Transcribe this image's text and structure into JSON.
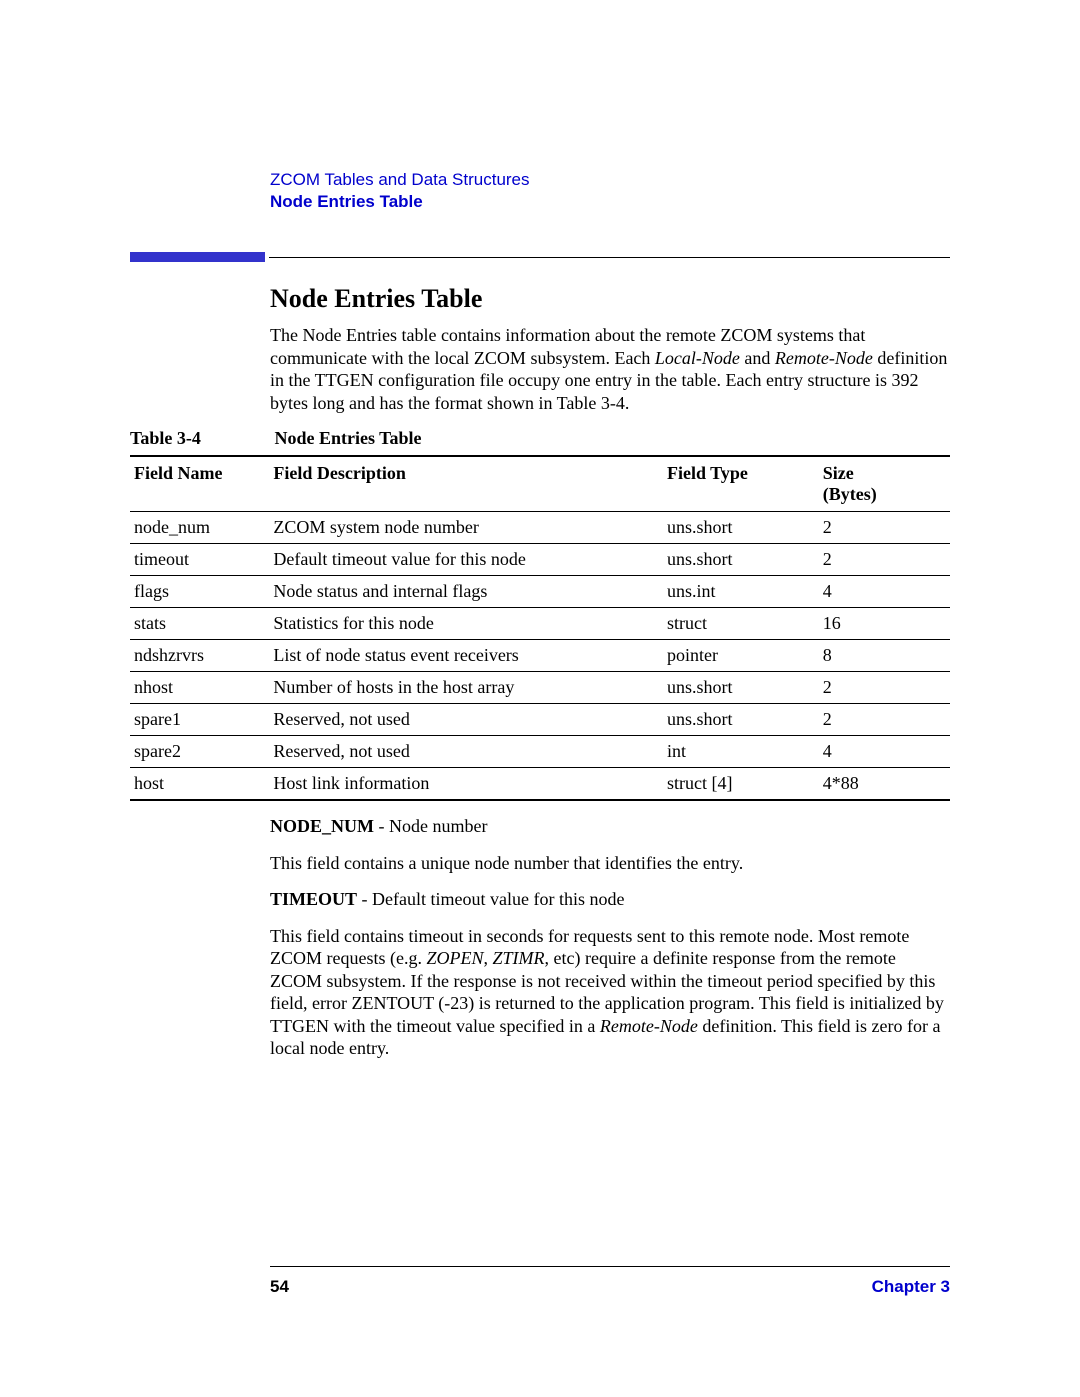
{
  "header": {
    "breadcrumb": "ZCOM Tables and Data Structures",
    "subtitle": "Node Entries Table"
  },
  "section": {
    "title": "Node Entries Table",
    "intro_html": "The Node Entries table contains information about the remote ZCOM systems that communicate with the local ZCOM subsystem. Each <i>Local-Node</i> and <i>Remote-Node</i> definition in the TTGEN configuration file occupy one entry in the table. Each entry structure is 392 bytes long and has the format shown in Table 3-4."
  },
  "table": {
    "caption_label": "Table 3-4",
    "caption_title": "Node Entries Table",
    "columns": [
      "Field Name",
      "Field Description",
      "Field Type",
      "Size (Bytes)"
    ],
    "rows": [
      [
        "node_num",
        "ZCOM system node number",
        "uns.short",
        "2"
      ],
      [
        "timeout",
        "Default timeout value for this node",
        "uns.short",
        "2"
      ],
      [
        "flags",
        "Node status and internal flags",
        "uns.int",
        "4"
      ],
      [
        "stats",
        "Statistics for this node",
        "struct",
        "16"
      ],
      [
        "ndshzrvrs",
        "List of node status event receivers",
        "pointer",
        "8"
      ],
      [
        "nhost",
        "Number of hosts in the host array",
        "uns.short",
        "2"
      ],
      [
        "spare1",
        "Reserved, not used",
        "uns.short",
        "2"
      ],
      [
        "spare2",
        "Reserved, not used",
        "int",
        "4"
      ],
      [
        "host",
        "Host link information",
        "struct [4]",
        "4*88"
      ]
    ]
  },
  "fields": {
    "node_num_label": "NODE_NUM",
    "node_num_short": " - Node number",
    "node_num_desc": "This field contains a unique node number that identifies the entry.",
    "timeout_label": "TIMEOUT",
    "timeout_short": " - Default timeout value for this node",
    "timeout_desc_html": "This field contains timeout in seconds for requests sent to this remote node. Most remote ZCOM requests (e.g. <i>ZOPEN</i>, <i>ZTIMR</i>, etc) require a definite response from the remote ZCOM subsystem. If the response is not received within the timeout period specified by this field, error ZENTOUT (-23) is returned to the application program. This field is initialized by TTGEN with the timeout value specified in a <i>Remote-Node</i> definition. This field is zero for a local node entry."
  },
  "footer": {
    "page": "54",
    "chapter": "Chapter 3"
  },
  "colors": {
    "link_blue": "#0000cc",
    "accent_bar": "#3333cc",
    "text": "#000000"
  }
}
